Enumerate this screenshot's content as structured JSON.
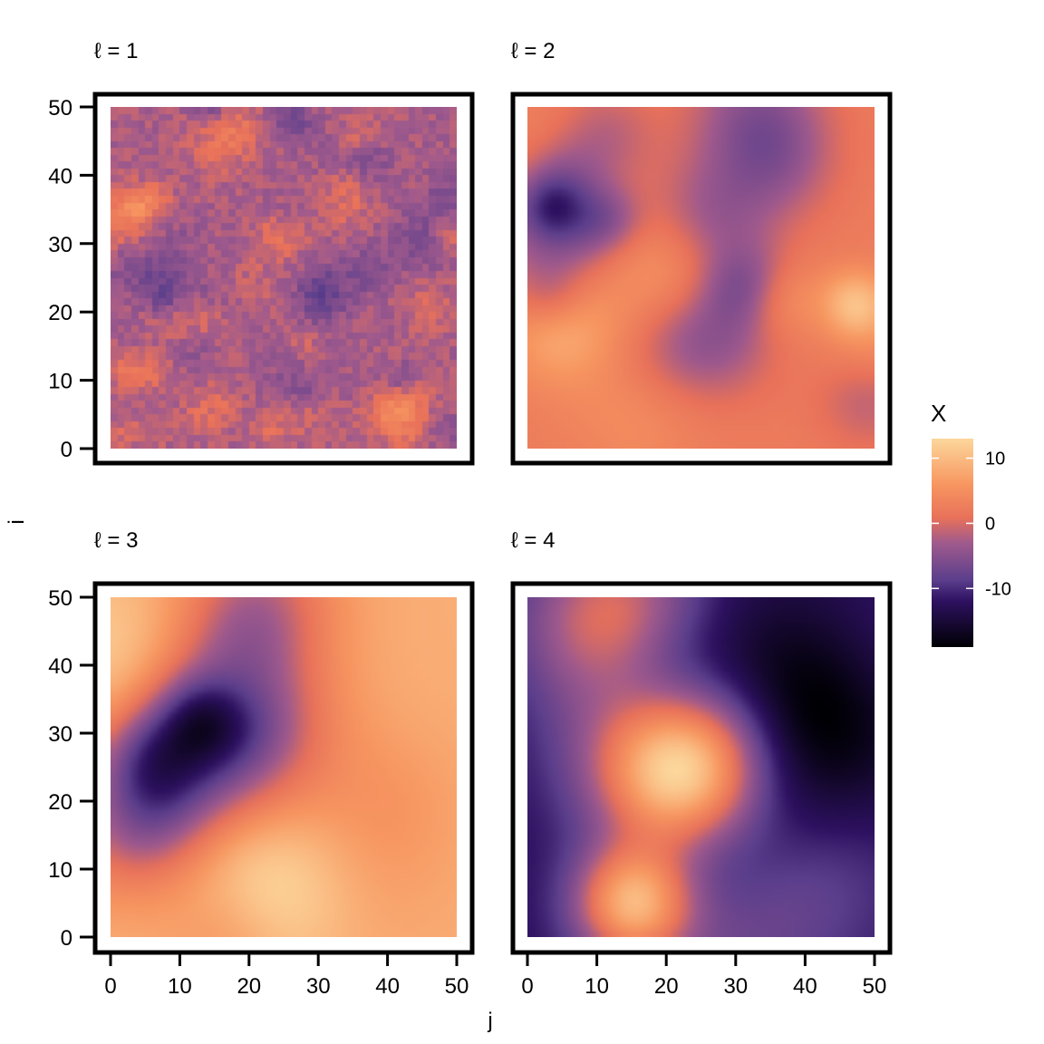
{
  "chart_data": {
    "type": "heatmap",
    "facets": [
      {
        "title": "ℓ = 1",
        "seed": 11,
        "blobs": 60,
        "scale": 2.2
      },
      {
        "title": "ℓ = 2",
        "seed": 23,
        "blobs": 26,
        "scale": 4.5
      },
      {
        "title": "ℓ = 3",
        "seed": 37,
        "blobs": 16,
        "scale": 6.0
      },
      {
        "title": "ℓ = 4",
        "seed": 51,
        "blobs": 10,
        "scale": 8.0
      }
    ],
    "grid_size": 50,
    "xlabel": "j",
    "ylabel": "i",
    "xlim": [
      0,
      50
    ],
    "ylim": [
      0,
      50
    ],
    "x_ticks": [
      0,
      10,
      20,
      30,
      40,
      50
    ],
    "y_ticks": [
      0,
      10,
      20,
      30,
      40,
      50
    ],
    "legend": {
      "title": "X",
      "ticks": [
        10,
        0,
        -10
      ],
      "tick_labels": [
        "10",
        "0",
        "-10"
      ],
      "range": [
        -19,
        13
      ],
      "placement": "right"
    },
    "colors": {
      "low": "#000004",
      "c1": "#2d1160",
      "c2": "#5a3e8c",
      "c3": "#a05a8c",
      "mid": "#e8715a",
      "c5": "#f79660",
      "high": "#fcd79c"
    }
  }
}
